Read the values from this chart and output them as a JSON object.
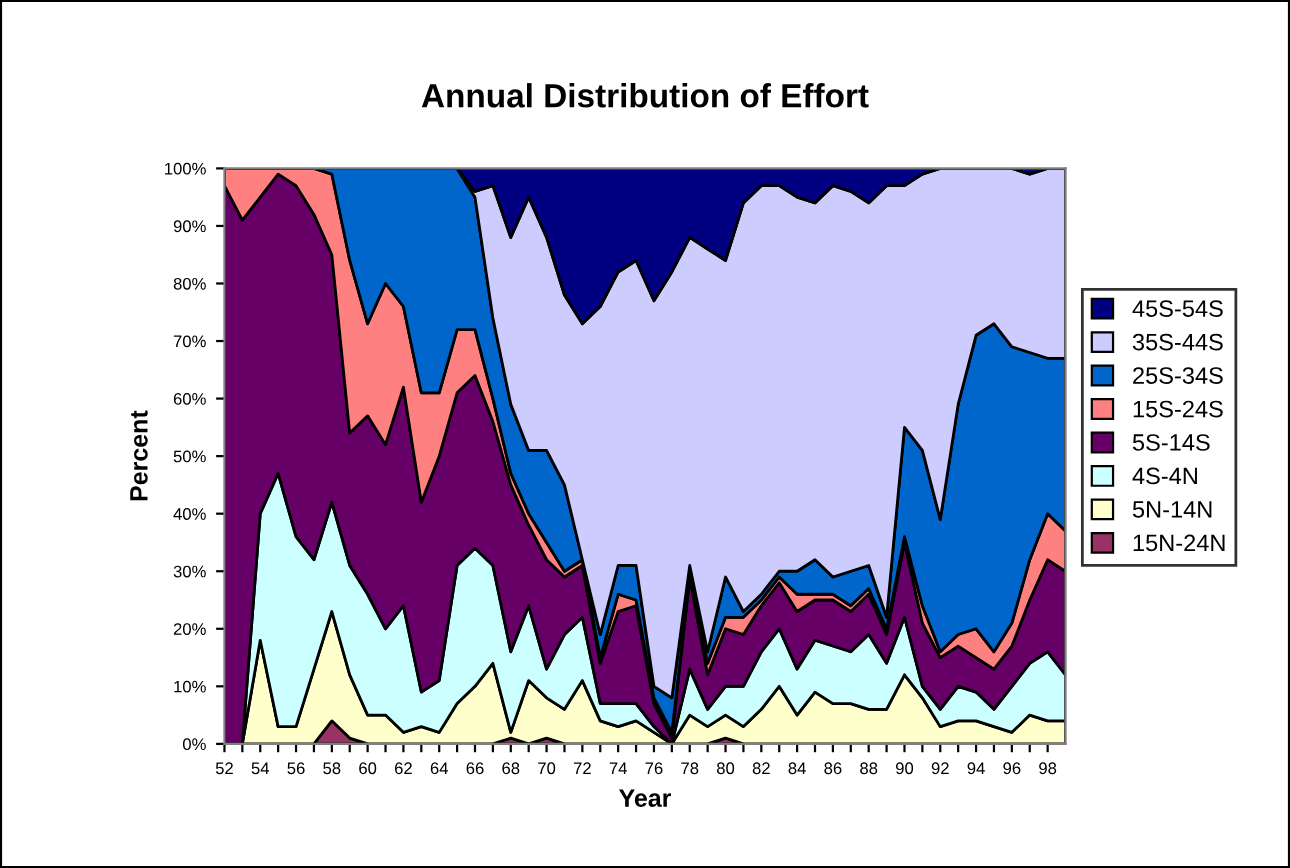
{
  "chart_data": {
    "type": "area",
    "stacked": true,
    "title": "Annual Distribution of Effort",
    "xlabel": "Year",
    "ylabel": "Percent",
    "x": [
      52,
      53,
      54,
      55,
      56,
      57,
      58,
      59,
      60,
      61,
      62,
      63,
      64,
      65,
      66,
      67,
      68,
      69,
      70,
      71,
      72,
      73,
      74,
      75,
      76,
      77,
      78,
      79,
      80,
      81,
      82,
      83,
      84,
      85,
      86,
      87,
      88,
      89,
      90,
      91,
      92,
      93,
      94,
      95,
      96,
      97,
      98,
      99
    ],
    "xlim": [
      52,
      99
    ],
    "xticks": [
      52,
      {
        "value": 53,
        "label": null
      },
      54,
      {
        "value": 55,
        "label": null
      },
      56,
      {
        "value": 57,
        "label": null
      },
      58,
      {
        "value": 59,
        "label": null
      },
      60,
      {
        "value": 61,
        "label": null
      },
      62,
      {
        "value": 63,
        "label": null
      },
      64,
      {
        "value": 65,
        "label": null
      },
      66,
      {
        "value": 67,
        "label": null
      },
      68,
      {
        "value": 69,
        "label": null
      },
      70,
      {
        "value": 71,
        "label": null
      },
      72,
      {
        "value": 73,
        "label": null
      },
      74,
      {
        "value": 75,
        "label": null
      },
      76,
      {
        "value": 77,
        "label": null
      },
      78,
      {
        "value": 79,
        "label": null
      },
      80,
      {
        "value": 81,
        "label": null
      },
      82,
      {
        "value": 83,
        "label": null
      },
      84,
      {
        "value": 85,
        "label": null
      },
      86,
      {
        "value": 87,
        "label": null
      },
      88,
      {
        "value": 89,
        "label": null
      },
      90,
      {
        "value": 91,
        "label": null
      },
      92,
      {
        "value": 93,
        "label": null
      },
      94,
      {
        "value": 95,
        "label": null
      },
      96,
      {
        "value": 97,
        "label": null
      },
      98
    ],
    "ylim": [
      0,
      100
    ],
    "yticks": [
      {
        "value": 0,
        "label": "0%"
      },
      {
        "value": 10,
        "label": "10%"
      },
      {
        "value": 20,
        "label": "20%"
      },
      {
        "value": 30,
        "label": "30%"
      },
      {
        "value": 40,
        "label": "40%"
      },
      {
        "value": 50,
        "label": "50%"
      },
      {
        "value": 60,
        "label": "60%"
      },
      {
        "value": 70,
        "label": "70%"
      },
      {
        "value": 80,
        "label": "80%"
      },
      {
        "value": 90,
        "label": "90%"
      },
      {
        "value": 100,
        "label": "100%"
      }
    ],
    "grid": false,
    "legend": "right",
    "series": [
      {
        "name": "15N-24N",
        "color": "#993366",
        "values": [
          0,
          0,
          0,
          0,
          0,
          0,
          4,
          1,
          0,
          0,
          0,
          0,
          0,
          0,
          0,
          0,
          1,
          0,
          1,
          0,
          0,
          0,
          0,
          0,
          0,
          0,
          0,
          0,
          1,
          0,
          0,
          0,
          0,
          0,
          0,
          0,
          0,
          0,
          0,
          0,
          0,
          0,
          0,
          0,
          0,
          0,
          0,
          0
        ]
      },
      {
        "name": "5N-14N",
        "color": "#ffffcc",
        "values": [
          0,
          0,
          18,
          3,
          3,
          13,
          19,
          11,
          5,
          5,
          2,
          3,
          2,
          7,
          10,
          14,
          1,
          11,
          7,
          6,
          11,
          4,
          3,
          4,
          2,
          0,
          5,
          3,
          4,
          3,
          6,
          10,
          5,
          9,
          7,
          7,
          6,
          6,
          12,
          8,
          3,
          4,
          4,
          3,
          2,
          5,
          4,
          4
        ]
      },
      {
        "name": "4S-4N",
        "color": "#ccffff",
        "values": [
          0,
          0,
          22,
          44,
          33,
          19,
          19,
          19,
          21,
          15,
          22,
          6,
          9,
          24,
          24,
          17,
          14,
          13,
          5,
          13,
          11,
          3,
          4,
          3,
          1,
          0,
          8,
          3,
          5,
          7,
          10,
          10,
          8,
          9,
          10,
          9,
          13,
          8,
          10,
          2,
          3,
          6,
          5,
          3,
          8,
          9,
          12,
          8
        ]
      },
      {
        "name": "5S-14S",
        "color": "#660066",
        "values": [
          97,
          91,
          55,
          52,
          61,
          60,
          43,
          23,
          31,
          32,
          38,
          33,
          39,
          30,
          30,
          25,
          29,
          14,
          19,
          10,
          9,
          7,
          16,
          17,
          4,
          1,
          16,
          6,
          10,
          9,
          8,
          8,
          10,
          7,
          8,
          7,
          7,
          5,
          13,
          11,
          9,
          7,
          6,
          7,
          7,
          11,
          16,
          18
        ]
      },
      {
        "name": "15S-24S",
        "color": "#ff8080",
        "values": [
          3,
          9,
          5,
          1,
          3,
          8,
          14,
          30,
          16,
          28,
          14,
          19,
          11,
          11,
          8,
          4,
          2,
          2,
          3,
          1,
          1,
          1,
          3,
          1,
          1,
          1,
          0,
          2,
          2,
          3,
          1,
          1,
          3,
          1,
          1,
          1,
          1,
          1,
          1,
          3,
          1,
          2,
          5,
          3,
          4,
          7,
          8,
          7
        ]
      },
      {
        "name": "25S-34S",
        "color": "#0066cc",
        "values": [
          0,
          0,
          0,
          0,
          0,
          0,
          1,
          16,
          27,
          20,
          24,
          39,
          39,
          28,
          23,
          14,
          12,
          11,
          16,
          15,
          0,
          4,
          5,
          6,
          2,
          6,
          2,
          2,
          7,
          1,
          1,
          1,
          4,
          6,
          3,
          6,
          4,
          2,
          19,
          27,
          23,
          40,
          51,
          57,
          48,
          36,
          27,
          30
        ]
      },
      {
        "name": "35S-44S",
        "color": "#ccccff",
        "values": [
          0,
          0,
          0,
          0,
          0,
          0,
          0,
          0,
          0,
          0,
          0,
          0,
          0,
          0,
          1,
          23,
          29,
          44,
          37,
          33,
          41,
          57,
          51,
          53,
          67,
          74,
          57,
          70,
          55,
          71,
          71,
          67,
          65,
          62,
          68,
          66,
          63,
          75,
          42,
          48,
          61,
          41,
          29,
          27,
          31,
          31,
          33,
          33
        ]
      },
      {
        "name": "45S-54S",
        "color": "#000080",
        "values": [
          0,
          0,
          0,
          0,
          0,
          0,
          0,
          0,
          0,
          0,
          0,
          0,
          0,
          0,
          4,
          3,
          12,
          5,
          12,
          22,
          27,
          24,
          18,
          16,
          23,
          18,
          12,
          14,
          16,
          6,
          3,
          3,
          5,
          6,
          3,
          4,
          6,
          3,
          3,
          1,
          0,
          0,
          0,
          0,
          0,
          1,
          0,
          0
        ]
      }
    ]
  }
}
